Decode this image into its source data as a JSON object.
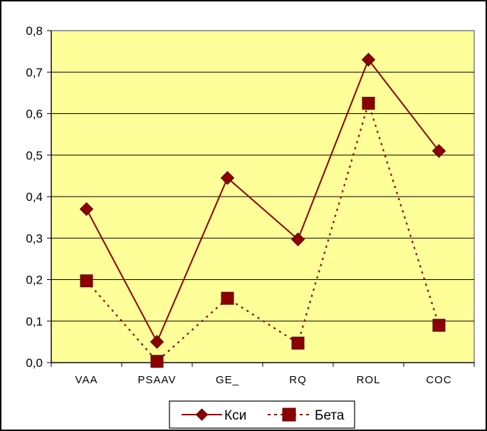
{
  "chart_data": {
    "type": "line",
    "categories": [
      "VAA",
      "PSAAV",
      "GE_",
      "RQ",
      "ROL",
      "COC"
    ],
    "series": [
      {
        "name": "Кси",
        "values": [
          0.37,
          0.05,
          0.445,
          0.297,
          0.73,
          0.51
        ],
        "color": "#8B0000",
        "marker": "diamond",
        "line_style": "solid"
      },
      {
        "name": "Бета",
        "values": [
          0.197,
          0.003,
          0.155,
          0.047,
          0.625,
          0.09
        ],
        "color": "#8B0000",
        "marker": "square",
        "line_style": "dotted"
      }
    ],
    "y_tick_labels": [
      "0,0",
      "0,1",
      "0,2",
      "0,3",
      "0,4",
      "0,5",
      "0,6",
      "0,7",
      "0,8"
    ],
    "ylim": [
      0,
      0.8
    ],
    "grid": true,
    "plot_background": "#FFFF99",
    "legend_position": "bottom"
  }
}
